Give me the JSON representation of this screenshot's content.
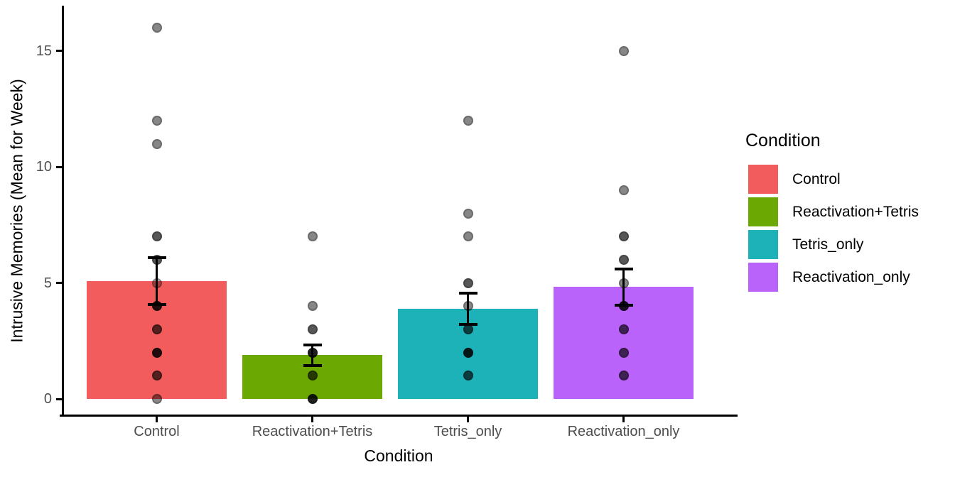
{
  "chart_data": {
    "type": "bar",
    "title": "",
    "xlabel": "Condition",
    "ylabel": "Intrusive Memories (Mean for Week)",
    "ylim": [
      0,
      16.8
    ],
    "yticks": [
      0,
      5,
      10,
      15
    ],
    "grid": false,
    "legend_title": "Condition",
    "legend_position": "right",
    "categories": [
      "Control",
      "Reactivation+Tetris",
      "Tetris_only",
      "Reactivation_only"
    ],
    "series": [
      {
        "name": "Control",
        "color": "#f25c5c",
        "mean": 5.08,
        "sem": 1.01,
        "points": [
          {
            "value": 16,
            "shade": "medium"
          },
          {
            "value": 12,
            "shade": "medium"
          },
          {
            "value": 11,
            "shade": "medium"
          },
          {
            "value": 7,
            "shade": "dark"
          },
          {
            "value": 6,
            "shade": "dark"
          },
          {
            "value": 5,
            "shade": "light"
          },
          {
            "value": 4,
            "shade": "darkest"
          },
          {
            "value": 3,
            "shade": "dark"
          },
          {
            "value": 2,
            "shade": "darkest"
          },
          {
            "value": 1,
            "shade": "dark"
          },
          {
            "value": 0,
            "shade": "medium"
          }
        ]
      },
      {
        "name": "Reactivation+Tetris",
        "color": "#6ca802",
        "mean": 1.89,
        "sem": 0.44,
        "points": [
          {
            "value": 7,
            "shade": "medium"
          },
          {
            "value": 4,
            "shade": "medium"
          },
          {
            "value": 3,
            "shade": "dark"
          },
          {
            "value": 2,
            "shade": "darkest"
          },
          {
            "value": 1,
            "shade": "dark"
          },
          {
            "value": 0,
            "shade": "darkest"
          }
        ]
      },
      {
        "name": "Tetris_only",
        "color": "#1db2b8",
        "mean": 3.88,
        "sem": 0.68,
        "points": [
          {
            "value": 12,
            "shade": "medium"
          },
          {
            "value": 8,
            "shade": "medium"
          },
          {
            "value": 7,
            "shade": "medium"
          },
          {
            "value": 5,
            "shade": "dark"
          },
          {
            "value": 4,
            "shade": "medium"
          },
          {
            "value": 3,
            "shade": "dark"
          },
          {
            "value": 2,
            "shade": "darkest"
          },
          {
            "value": 1,
            "shade": "dark"
          }
        ]
      },
      {
        "name": "Reactivation_only",
        "color": "#ba63fa",
        "mean": 4.83,
        "sem": 0.78,
        "points": [
          {
            "value": 15,
            "shade": "medium"
          },
          {
            "value": 9,
            "shade": "medium"
          },
          {
            "value": 7,
            "shade": "dark"
          },
          {
            "value": 6,
            "shade": "dark"
          },
          {
            "value": 5,
            "shade": "medium"
          },
          {
            "value": 4,
            "shade": "darkest"
          },
          {
            "value": 3,
            "shade": "dark"
          },
          {
            "value": 2,
            "shade": "dark"
          },
          {
            "value": 1,
            "shade": "dark"
          }
        ]
      }
    ]
  }
}
